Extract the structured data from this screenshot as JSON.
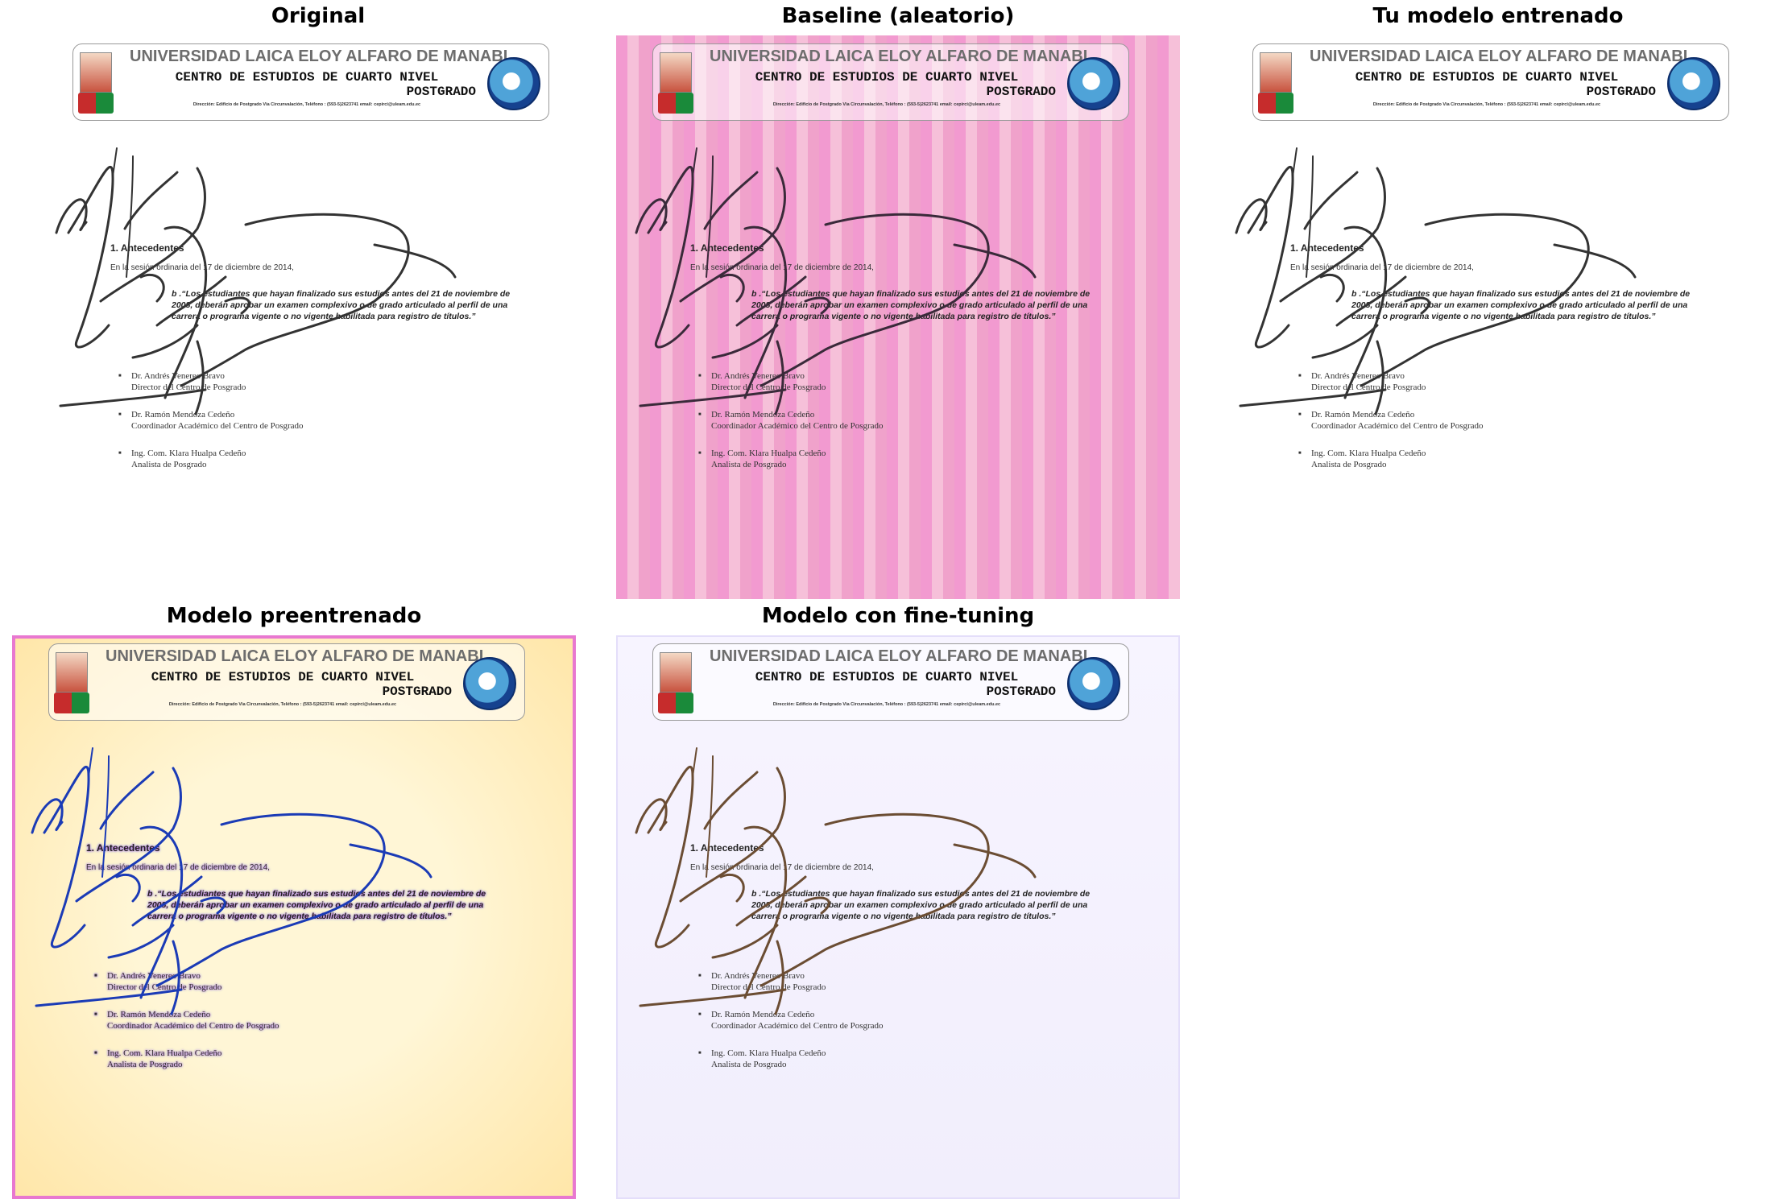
{
  "panels": [
    {
      "title": "Original",
      "background": "#ffffff",
      "tint": "none",
      "ink": "#333333"
    },
    {
      "title": "Baseline (aleatorio)",
      "background": "#f2a9d2",
      "tint": "stripes-pink",
      "ink": "#3a2a3a"
    },
    {
      "title": "Tu modelo entrenado",
      "background": "#ffffff",
      "tint": "none",
      "ink": "#333333"
    },
    {
      "title": "Modelo preentrenado",
      "background": "#fff1c8",
      "tint": "checker-yellow",
      "ink": "#1b3bb6"
    },
    {
      "title": "Modelo con fine-tuning",
      "background": "#f4f1ff",
      "tint": "soft-lavender",
      "ink": "#6b4d33"
    }
  ],
  "document": {
    "header_title": "UNIVERSIDAD LAICA ELOY ALFARO DE MANABI",
    "header_subtitle": "CENTRO DE ESTUDIOS DE CUARTO NIVEL",
    "header_postgrado": "POSTGRADO",
    "header_address": "Dirección: Edificio de Postgrado Vía Circunvalación, Teléfono : (593-5)2623741 email: cepirci@uleam.edu.ec",
    "section_title": "1. Antecedentes",
    "intro": "En la sesión ordinaria del 17 de diciembre de 2014,",
    "quote": "b .“Los estudiantes que hayan finalizado sus estudios antes del 21 de noviembre de 2008, deberán aprobar un examen complexivo o de grado articulado al perfil de una carrera o programa vigente o no vigente habilitada para registro de títulos.”",
    "people": [
      {
        "name": "Dr. Andrés Venereo Bravo",
        "role": "Director del Centro de Posgrado"
      },
      {
        "name": "Dr. Ramón Mendoza Cedeño",
        "role": "Coordinador Académico del Centro de Posgrado"
      },
      {
        "name": "Ing. Com. Klara Hualpa Cedeño",
        "role": "Analista de Posgrado"
      }
    ]
  }
}
